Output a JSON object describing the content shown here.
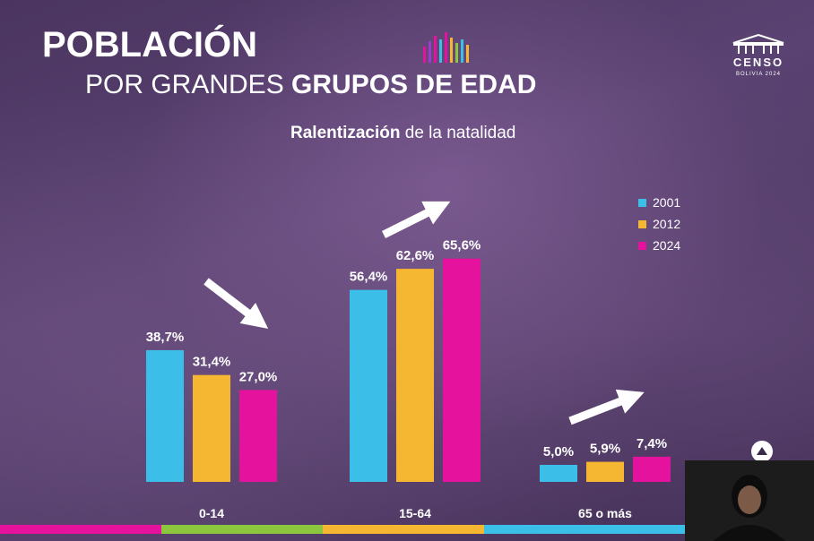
{
  "slide": {
    "title_line1": "POBLACIÓN",
    "title_line2_plain": "POR GRANDES ",
    "title_line2_bold": "GRUPOS DE EDAD",
    "subtitle_bold": "Ralentización",
    "subtitle_plain": " de la natalidad",
    "logo_text": "CENSO",
    "logo_subtext": "BOLIVIA 2024"
  },
  "colors": {
    "s2001": "#3bbfe8",
    "s2012": "#f5b731",
    "s2024": "#e4129c",
    "strip": [
      "#e4129c",
      "#8cc63f",
      "#f5b731",
      "#3bbfe8",
      "#3bbfe8"
    ]
  },
  "chart_data": {
    "type": "bar",
    "title": "POBLACIÓN POR GRANDES GRUPOS DE EDAD",
    "subtitle": "Ralentización de la natalidad",
    "categories": [
      "0-14",
      "15-64",
      "65 o más"
    ],
    "series": [
      {
        "name": "2001",
        "values": [
          38.7,
          56.4,
          5.0
        ],
        "labels": [
          "38,7%",
          "56,4%",
          "5,0%"
        ]
      },
      {
        "name": "2012",
        "values": [
          31.4,
          62.6,
          5.9
        ],
        "labels": [
          "31,4%",
          "62,6%",
          "5,9%"
        ]
      },
      {
        "name": "2024",
        "values": [
          27.0,
          65.6,
          7.4
        ],
        "labels": [
          "27,0%",
          "65,6%",
          "7,4%"
        ]
      }
    ],
    "ylim": [
      0,
      70
    ],
    "legend_position": "top-right",
    "annotations": [
      "arrow down over 0-14",
      "arrow up over 15-64",
      "arrow up over 65 o más"
    ]
  }
}
